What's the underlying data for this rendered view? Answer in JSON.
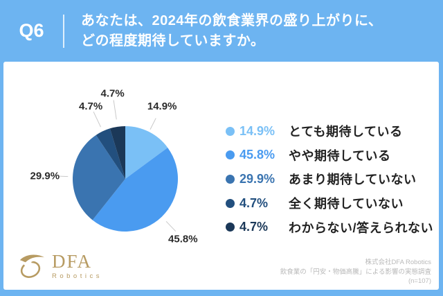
{
  "header": {
    "q_label": "Q6",
    "question_line1": "あなたは、2024年の飲食業界の盛り上がりに、",
    "question_line2": "どの程度期待していますか。"
  },
  "chart_data": {
    "type": "pie",
    "title": "あなたは、2024年の飲食業界の盛り上がりに、どの程度期待していますか。",
    "categories": [
      "とても期待している",
      "やや期待している",
      "あまり期待していない",
      "全く期待していない",
      "わからない/答えられない"
    ],
    "values": [
      14.9,
      45.8,
      29.9,
      4.7,
      4.7
    ],
    "labels": [
      "14.9%",
      "45.8%",
      "29.9%",
      "4.7%",
      "4.7%"
    ],
    "colors": [
      "#7AC0F6",
      "#4A9BF0",
      "#3A74B0",
      "#224F7E",
      "#1B3858"
    ],
    "legend_position": "right",
    "start_angle": "top-clockwise",
    "label_text_color": "#2b2b2b",
    "leader_line_color": "#c9c9c9"
  },
  "footer": {
    "logo": {
      "brand": "DFA",
      "sub": "Robotics",
      "color": "#B79B62"
    },
    "credit_line1": "株式会社DFA Robotics",
    "credit_line2": "飲食業の「円安・物価高騰」による影響の実態調査",
    "credit_line3": "(n=107)"
  },
  "colors": {
    "header_bg": "#6DB4F1",
    "frame": "#6DB4F1",
    "card_bg": "#FFFFFF"
  }
}
